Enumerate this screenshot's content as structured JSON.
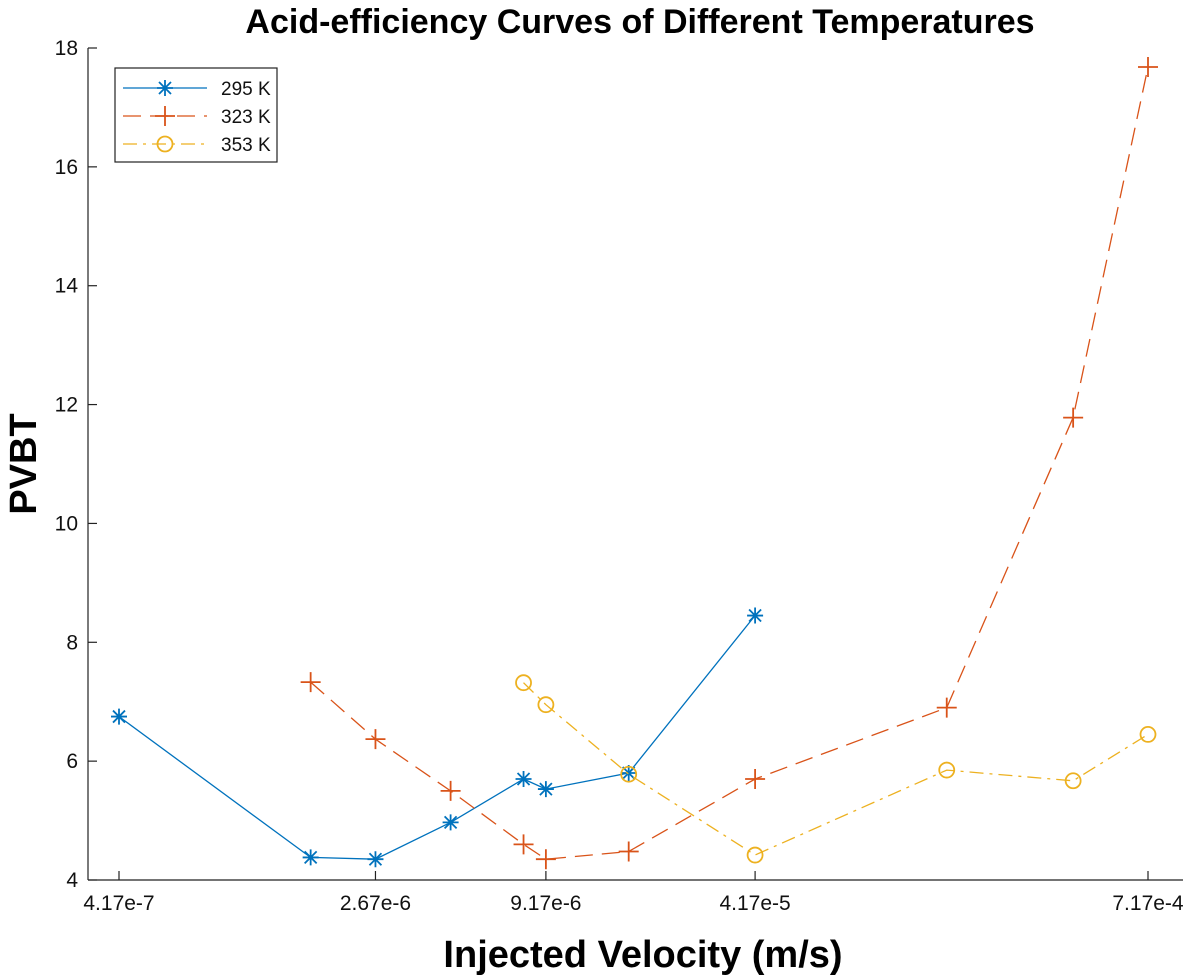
{
  "chart_data": {
    "type": "line",
    "title": "Acid-efficiency Curves of Different Temperatures",
    "xlabel": "Injected Velocity (m/s)",
    "ylabel": "PVBT",
    "x_scale": "log",
    "xlim": [
      4.17e-07,
      0.000717
    ],
    "ylim": [
      4,
      18
    ],
    "xticks": [
      {
        "value": 4.17e-07,
        "label": "4.17e-7"
      },
      {
        "value": 2.67e-06,
        "label": "2.67e-6"
      },
      {
        "value": 9.17e-06,
        "label": "9.17e-6"
      },
      {
        "value": 4.17e-05,
        "label": "4.17e-5"
      },
      {
        "value": 0.000717,
        "label": "7.17e-4"
      }
    ],
    "yticks": [
      4,
      6,
      8,
      10,
      12,
      14,
      16,
      18
    ],
    "grid": false,
    "legend_position": "top-left",
    "series": [
      {
        "name": "295 K",
        "color": "#0072BD",
        "marker": "asterisk",
        "line_style": "solid",
        "x": [
          4.17e-07,
          1.67e-06,
          2.67e-06,
          4.6e-06,
          7.8e-06,
          9.17e-06,
          1.67e-05,
          4.17e-05
        ],
        "y": [
          6.75,
          4.38,
          4.35,
          4.97,
          5.7,
          5.53,
          5.8,
          8.45
        ]
      },
      {
        "name": "323 K",
        "color": "#D95319",
        "marker": "plus",
        "line_style": "dashed",
        "x": [
          1.67e-06,
          2.67e-06,
          4.6e-06,
          7.8e-06,
          9.17e-06,
          1.67e-05,
          4.17e-05,
          0.000167,
          0.000417,
          0.000717
        ],
        "y": [
          7.33,
          6.37,
          5.5,
          4.6,
          4.35,
          4.48,
          5.7,
          6.9,
          11.78,
          17.68
        ]
      },
      {
        "name": "353 K",
        "color": "#EDB120",
        "marker": "circle",
        "line_style": "dashdot",
        "x": [
          7.8e-06,
          9.17e-06,
          1.67e-05,
          4.17e-05,
          0.000167,
          0.000417,
          0.000717
        ],
        "y": [
          7.32,
          6.95,
          5.78,
          4.42,
          5.85,
          5.67,
          6.45
        ]
      }
    ]
  }
}
